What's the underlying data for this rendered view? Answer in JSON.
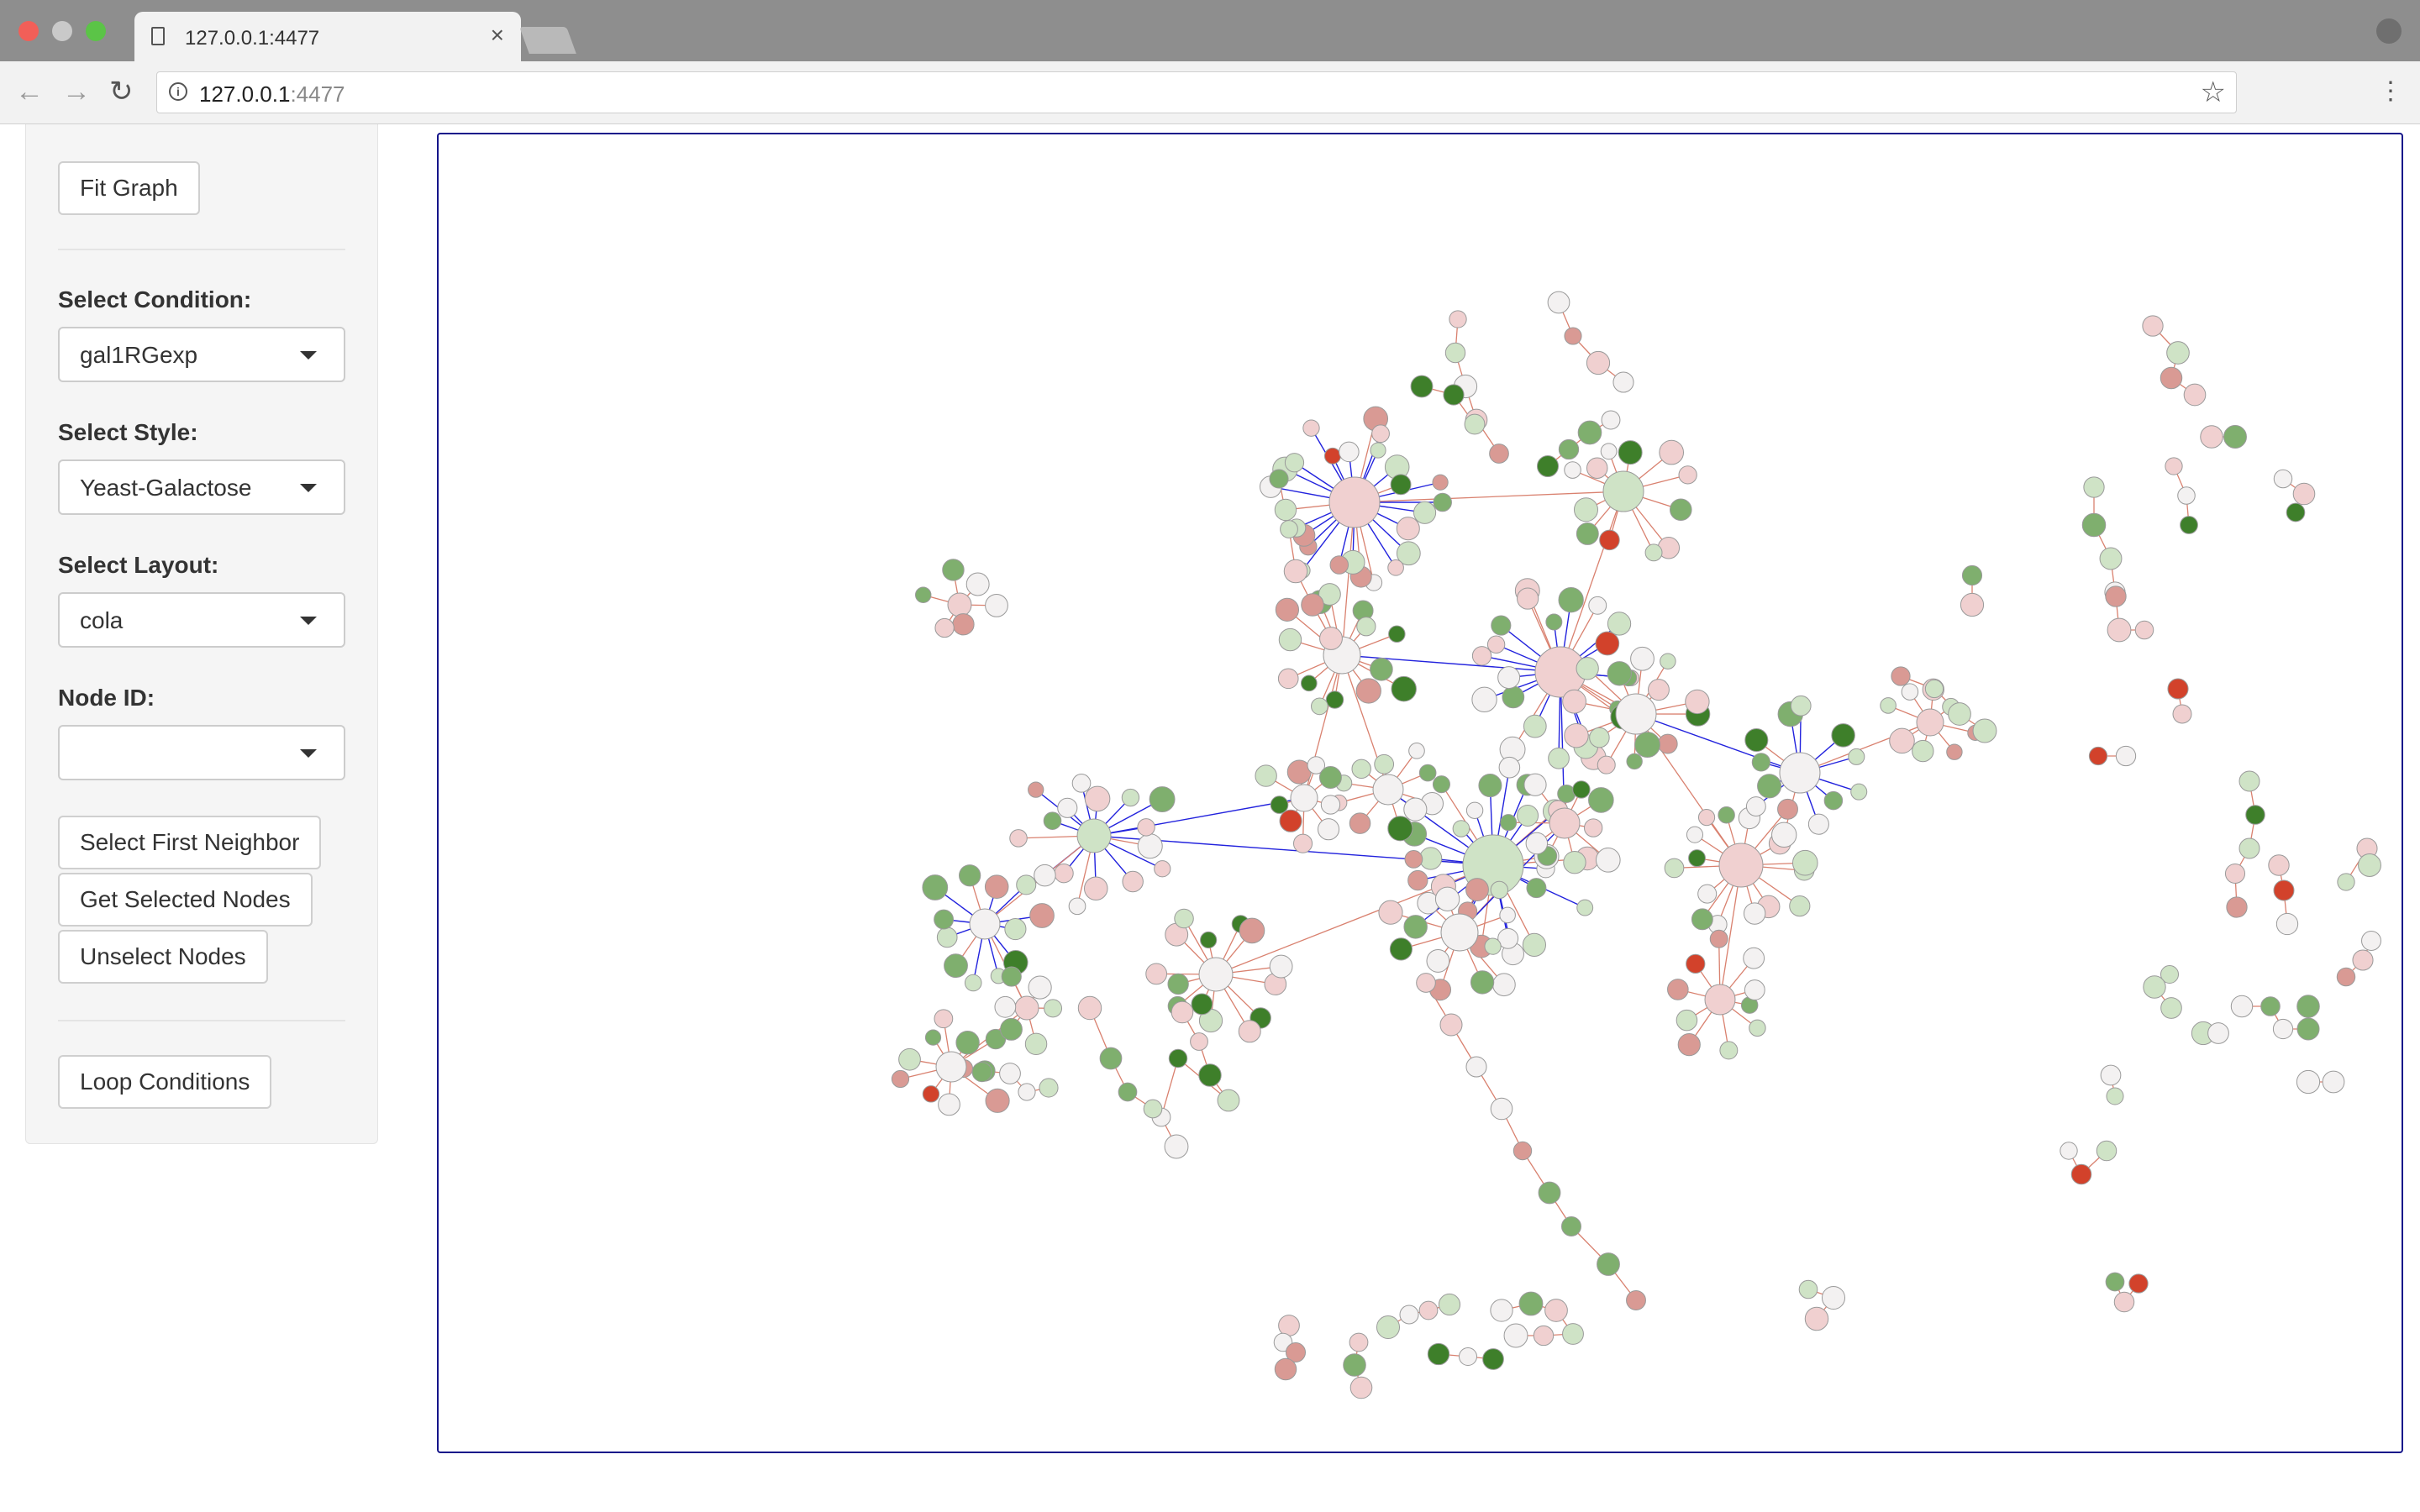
{
  "browser": {
    "tab_title": "127.0.0.1:4477",
    "url_host": "127.0.0.1",
    "url_port": ":4477",
    "icons": [
      "document-icon",
      "close-icon",
      "back-icon",
      "forward-icon",
      "reload-icon",
      "info-icon",
      "star-icon",
      "menu-icon",
      "profile-icon"
    ]
  },
  "sidebar": {
    "fit_graph": "Fit Graph",
    "condition_label": "Select Condition:",
    "condition_value": "gal1RGexp",
    "style_label": "Select Style:",
    "style_value": "Yeast-Galactose",
    "layout_label": "Select Layout:",
    "layout_value": "cola",
    "node_id_label": "Node ID:",
    "node_id_value": "",
    "select_first_neighbor": "Select First Neighbor",
    "get_selected_nodes": "Get Selected Nodes",
    "unselect_nodes": "Unselect Nodes",
    "loop_conditions": "Loop Conditions"
  },
  "graph": {
    "colors": {
      "border": "#15158a",
      "edge_interaction": "#d9816f",
      "edge_directed": "#2222dd",
      "node_up_strong": "#3e7f2a",
      "node_up_mid": "#7faf6e",
      "node_up_weak": "#cfe3c6",
      "node_neutral": "#f3f1f1",
      "node_down_weak": "#f0d0d0",
      "node_down_mid": "#d99a94",
      "node_down_strong": "#d2422b"
    }
  }
}
